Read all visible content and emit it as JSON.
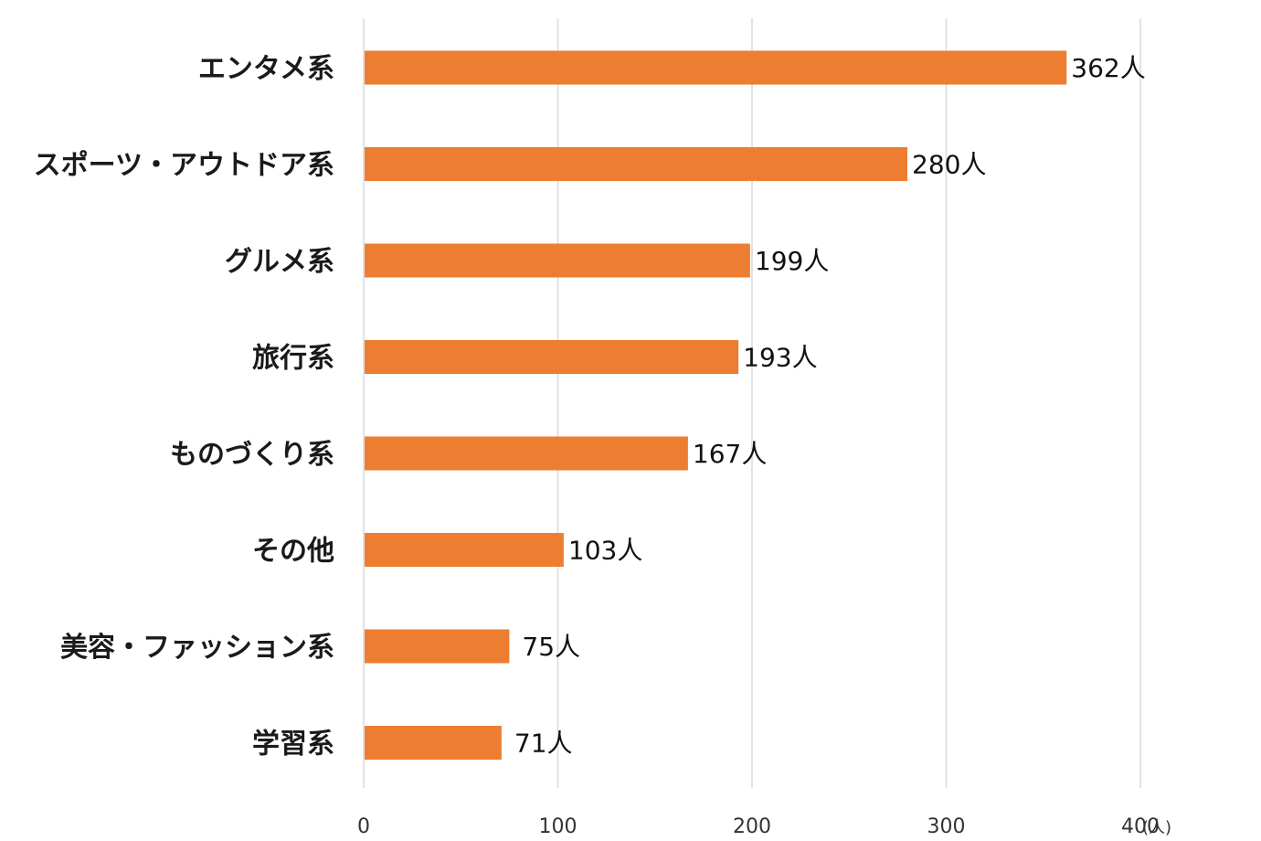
{
  "chart_data": {
    "type": "bar",
    "orientation": "horizontal",
    "title": "",
    "xlabel": "",
    "ylabel": "",
    "x_unit": "(人)",
    "value_suffix": "人",
    "xlim": [
      0,
      400
    ],
    "x_ticks": [
      0,
      100,
      200,
      300,
      400
    ],
    "grid": true,
    "bar_color": "#ED7D31",
    "categories": [
      "エンタメ系",
      "スポーツ・アウトドア系",
      "グルメ系",
      "旅行系",
      "ものづくり系",
      "その他",
      "美容・ファッション系",
      "学習系"
    ],
    "values": [
      362,
      280,
      199,
      193,
      167,
      103,
      75,
      71
    ],
    "data_labels": [
      "362人",
      "280人",
      "199人",
      "193人",
      "167人",
      "103人",
      "75人",
      "71人"
    ]
  }
}
